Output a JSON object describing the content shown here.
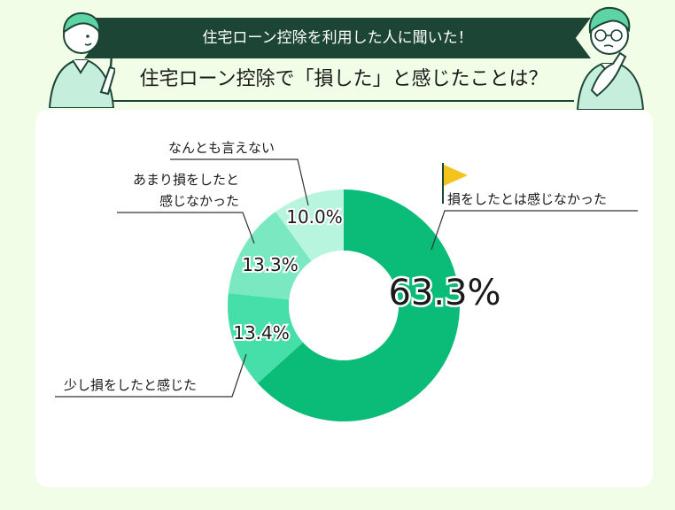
{
  "header": {
    "subtitle": "住宅ローン控除を利用した人に聞いた！",
    "title": "住宅ローン控除で「損した」と感じたことは？"
  },
  "colors": {
    "ribbon": "#1c4535",
    "background": "#f1fde6",
    "slice_1": "#0bbb78",
    "slice_2": "#47dfa9",
    "slice_3": "#7ae8c1",
    "slice_4": "#b7f5de",
    "flag": "#f4c41e"
  },
  "chart_data": {
    "type": "pie",
    "title": "住宅ローン控除で「損した」と感じたことは？",
    "slices": [
      {
        "label": "損をしたとは感じなかった",
        "value": 63.3,
        "display": "63.3%"
      },
      {
        "label": "少し損をしたと感じた",
        "value": 13.4,
        "display": "13.4%"
      },
      {
        "label": "あまり損をしたと感じなかった",
        "label_lines": [
          "あまり損をしたと",
          "感じなかった"
        ],
        "value": 13.3,
        "display": "13.3%"
      },
      {
        "label": "なんとも言えない",
        "value": 10.0,
        "display": "10.0%"
      }
    ]
  }
}
